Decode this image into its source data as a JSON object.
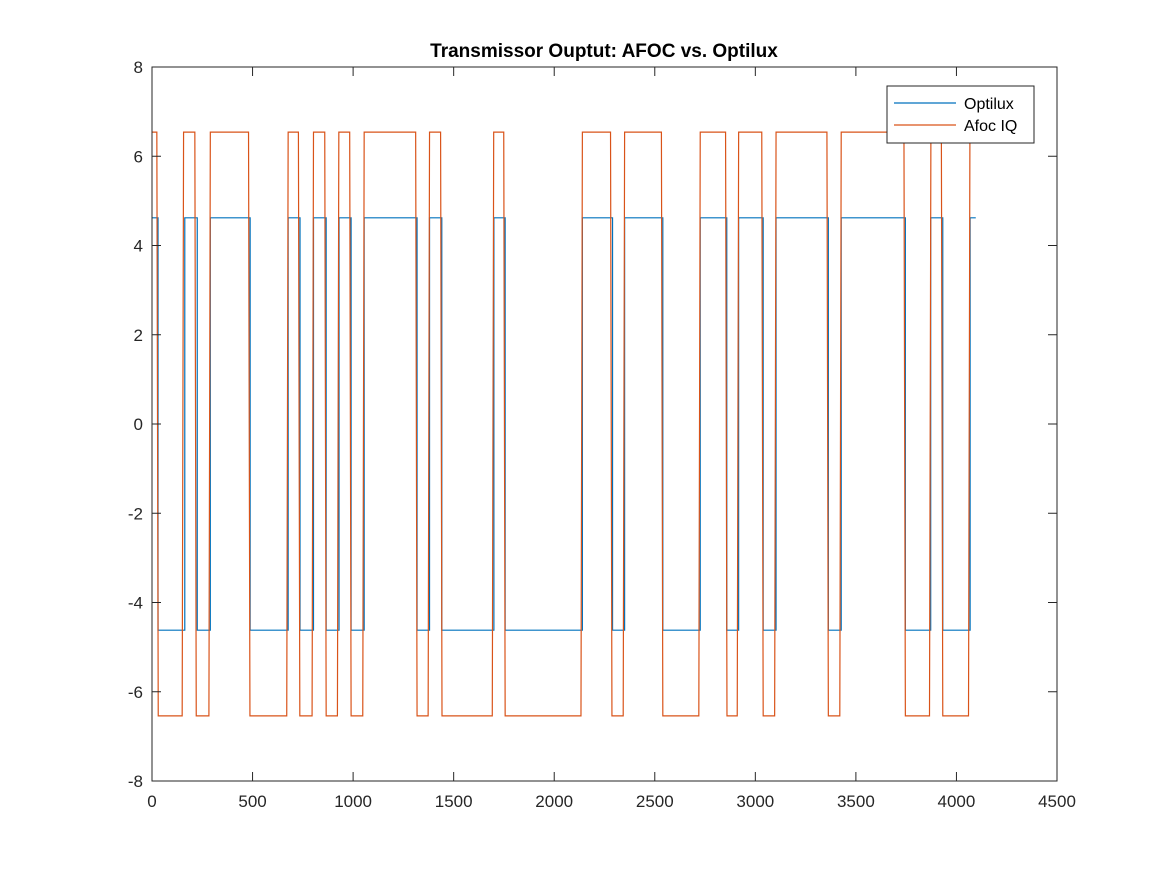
{
  "chart_data": {
    "type": "line",
    "title": "Transmissor Ouptut: AFOC vs. Optilux",
    "xlabel": "",
    "ylabel": "",
    "xlim": [
      0,
      4500
    ],
    "ylim": [
      -8,
      8
    ],
    "xticks": [
      0,
      500,
      1000,
      1500,
      2000,
      2500,
      3000,
      3500,
      4000,
      4500
    ],
    "yticks": [
      -8,
      -6,
      -4,
      -2,
      0,
      2,
      4,
      6,
      8
    ],
    "grid": false,
    "legend_position": "top-right",
    "series": [
      {
        "name": "Optilux",
        "color": "#0072BD",
        "shape": "step",
        "low": -4.62,
        "high": 4.62,
        "x_end": 4096,
        "transitions": [
          [
            0,
            4.62
          ],
          [
            30,
            -4.62
          ],
          [
            163,
            4.62
          ],
          [
            225,
            -4.62
          ],
          [
            290,
            4.62
          ],
          [
            488,
            -4.62
          ],
          [
            677,
            4.62
          ],
          [
            736,
            -4.62
          ],
          [
            803,
            4.62
          ],
          [
            866,
            -4.62
          ],
          [
            930,
            4.62
          ],
          [
            990,
            -4.62
          ],
          [
            1055,
            4.62
          ],
          [
            1318,
            -4.62
          ],
          [
            1380,
            4.62
          ],
          [
            1441,
            -4.62
          ],
          [
            1700,
            4.62
          ],
          [
            1756,
            -4.62
          ],
          [
            2140,
            4.62
          ],
          [
            2290,
            -4.62
          ],
          [
            2350,
            4.62
          ],
          [
            2540,
            -4.62
          ],
          [
            2726,
            4.62
          ],
          [
            2858,
            -4.62
          ],
          [
            2917,
            4.62
          ],
          [
            3039,
            -4.62
          ],
          [
            3103,
            4.62
          ],
          [
            3363,
            -4.62
          ],
          [
            3427,
            4.62
          ],
          [
            3746,
            -4.62
          ],
          [
            3872,
            4.62
          ],
          [
            3932,
            -4.62
          ],
          [
            4068,
            4.62
          ]
        ]
      },
      {
        "name": "Afoc IQ",
        "color": "#D95319",
        "shape": "trapezoid",
        "low": -6.54,
        "high": 6.54,
        "x_end": 4072,
        "transitions": [
          [
            0,
            6.54
          ],
          [
            24,
            -6.54
          ],
          [
            150,
            6.54
          ],
          [
            213,
            -6.54
          ],
          [
            283,
            6.54
          ],
          [
            480,
            -6.54
          ],
          [
            670,
            6.54
          ],
          [
            728,
            -6.54
          ],
          [
            796,
            6.54
          ],
          [
            859,
            -6.54
          ],
          [
            922,
            6.54
          ],
          [
            983,
            -6.54
          ],
          [
            1048,
            6.54
          ],
          [
            1311,
            -6.54
          ],
          [
            1373,
            6.54
          ],
          [
            1435,
            -6.54
          ],
          [
            1692,
            6.54
          ],
          [
            1749,
            -6.54
          ],
          [
            2133,
            6.54
          ],
          [
            2280,
            -6.54
          ],
          [
            2343,
            6.54
          ],
          [
            2533,
            -6.54
          ],
          [
            2719,
            6.54
          ],
          [
            2852,
            -6.54
          ],
          [
            2910,
            6.54
          ],
          [
            3032,
            -6.54
          ],
          [
            3096,
            6.54
          ],
          [
            3356,
            -6.54
          ],
          [
            3420,
            6.54
          ],
          [
            3739,
            -6.54
          ],
          [
            3866,
            6.54
          ],
          [
            3925,
            -6.54
          ],
          [
            4060,
            6.54
          ]
        ]
      }
    ]
  }
}
